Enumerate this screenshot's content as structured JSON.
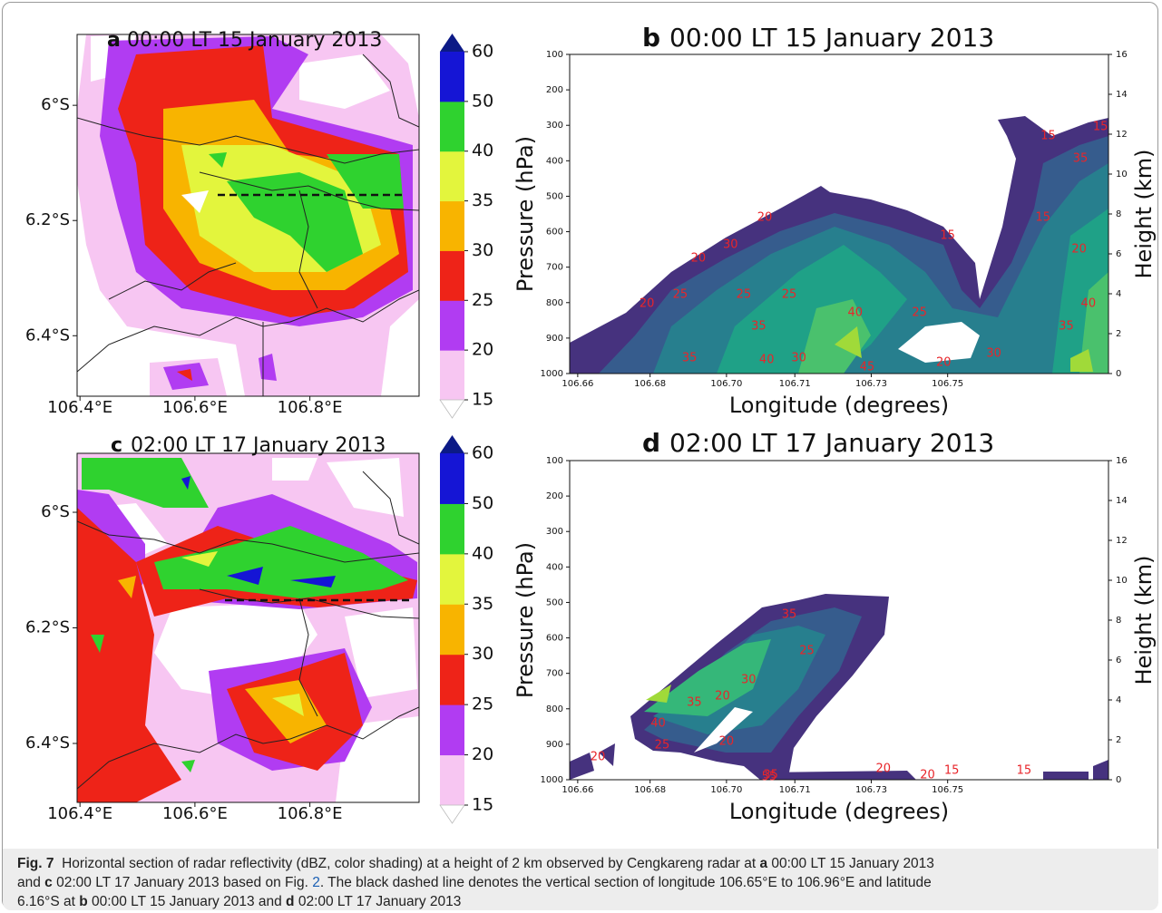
{
  "chart_data": [
    {
      "type": "map",
      "letter": "a",
      "title": "00:00 LT 15 January 2013",
      "xlim": [
        106.395,
        106.99
      ],
      "ylim": [
        -6.505,
        -5.877
      ],
      "xticks": [
        {
          "value": 106.4,
          "label": "106.4°E"
        },
        {
          "value": 106.6,
          "label": "106.6°E"
        },
        {
          "value": 106.8,
          "label": "106.8°E"
        }
      ],
      "yticks": [
        {
          "value": -6.0,
          "label": "6°S"
        },
        {
          "value": -6.2,
          "label": "6.2°S"
        },
        {
          "value": -6.4,
          "label": "6.4°S"
        }
      ],
      "colorbar": {
        "levels": [
          15,
          20,
          25,
          30,
          35,
          40,
          50,
          60
        ],
        "colors": [
          "#f7c6f2",
          "#b13cf2",
          "#ee2318",
          "#f8b400",
          "#e3f53d",
          "#2fd22f",
          "#1515d5"
        ],
        "extend_colors": [
          "#ffffff",
          "#0c1a86"
        ]
      }
    },
    {
      "type": "cross-section",
      "letter": "b",
      "title": "00:00 LT 15 January 2013",
      "xlabel": "Longitude (degrees)",
      "ylabel": "Pressure (hPa)",
      "y2label": "Height (km)",
      "xlim": [
        106.658,
        106.792
      ],
      "ylim": [
        1000,
        100
      ],
      "y2lim": [
        0,
        16
      ],
      "xticks": [
        106.66,
        {
          "value": 106.678,
          "label": "106.68"
        },
        {
          "value": 106.697,
          "label": "106.70"
        },
        {
          "value": 106.714,
          "label": "106.71"
        },
        {
          "value": 106.733,
          "label": "106.73"
        },
        {
          "value": 106.752,
          "label": "106.75"
        }
      ],
      "yticks": [
        100,
        200,
        300,
        400,
        500,
        600,
        700,
        800,
        900,
        1000
      ],
      "y2ticks": [
        0,
        2,
        4,
        6,
        8,
        10,
        12,
        14,
        16
      ],
      "label_color": "#e8252a",
      "contour_labels": [
        {
          "value": 20,
          "x": 106.7065,
          "y": 560
        },
        {
          "value": 20,
          "x": 106.69,
          "y": 675
        },
        {
          "value": 30,
          "x": 106.698,
          "y": 637
        },
        {
          "value": 25,
          "x": 106.6855,
          "y": 778
        },
        {
          "value": 25,
          "x": 106.7013,
          "y": 778
        },
        {
          "value": 25,
          "x": 106.7126,
          "y": 778
        },
        {
          "value": 20,
          "x": 106.6772,
          "y": 803
        },
        {
          "value": 40,
          "x": 106.729,
          "y": 829
        },
        {
          "value": 25,
          "x": 106.745,
          "y": 829
        },
        {
          "value": 35,
          "x": 106.705,
          "y": 867
        },
        {
          "value": 15,
          "x": 106.752,
          "y": 611
        },
        {
          "value": 15,
          "x": 106.777,
          "y": 330
        },
        {
          "value": 35,
          "x": 106.785,
          "y": 394
        },
        {
          "value": 20,
          "x": 106.7847,
          "y": 650
        },
        {
          "value": 40,
          "x": 106.787,
          "y": 803
        },
        {
          "value": 35,
          "x": 106.7815,
          "y": 867
        },
        {
          "value": 30,
          "x": 106.7635,
          "y": 944
        },
        {
          "value": 20,
          "x": 106.751,
          "y": 969
        },
        {
          "value": 35,
          "x": 106.6878,
          "y": 957
        },
        {
          "value": 40,
          "x": 106.707,
          "y": 962
        },
        {
          "value": 30,
          "x": 106.715,
          "y": 957
        },
        {
          "value": 45,
          "x": 106.732,
          "y": 982
        },
        {
          "value": 15,
          "x": 106.7757,
          "y": 560
        },
        {
          "value": 15,
          "x": 106.79,
          "y": 305
        }
      ]
    },
    {
      "type": "map",
      "letter": "c",
      "title": "02:00 LT 17 January 2013",
      "xlim": [
        106.395,
        106.99
      ],
      "ylim": [
        -6.502,
        -5.898
      ],
      "xticks": [
        {
          "value": 106.4,
          "label": "106.4°E"
        },
        {
          "value": 106.6,
          "label": "106.6°E"
        },
        {
          "value": 106.8,
          "label": "106.8°E"
        }
      ],
      "yticks": [
        {
          "value": -6.0,
          "label": "6°S"
        },
        {
          "value": -6.2,
          "label": "6.2°S"
        },
        {
          "value": -6.4,
          "label": "6.4°S"
        }
      ],
      "colorbar": {
        "levels": [
          15,
          20,
          25,
          30,
          35,
          40,
          50,
          60
        ],
        "colors": [
          "#f7c6f2",
          "#b13cf2",
          "#ee2318",
          "#f8b400",
          "#e3f53d",
          "#2fd22f",
          "#1515d5"
        ],
        "extend_colors": [
          "#ffffff",
          "#0c1a86"
        ]
      }
    },
    {
      "type": "cross-section",
      "letter": "d",
      "title": "02:00 LT 17 January 2013",
      "xlabel": "Longitude (degrees)",
      "ylabel": "Pressure (hPa)",
      "y2label": "Height (km)",
      "xlim": [
        106.658,
        106.792
      ],
      "ylim": [
        1000,
        100
      ],
      "y2lim": [
        0,
        16
      ],
      "xticks": [
        106.66,
        {
          "value": 106.678,
          "label": "106.68"
        },
        {
          "value": 106.697,
          "label": "106.70"
        },
        {
          "value": 106.714,
          "label": "106.71"
        },
        {
          "value": 106.733,
          "label": "106.73"
        },
        {
          "value": 106.752,
          "label": "106.75"
        }
      ],
      "yticks": [
        100,
        200,
        300,
        400,
        500,
        600,
        700,
        800,
        900,
        1000
      ],
      "y2ticks": [
        0,
        2,
        4,
        6,
        8,
        10,
        12,
        14,
        16
      ],
      "label_color": "#e8252a",
      "contour_labels": [
        {
          "value": 35,
          "x": 106.7126,
          "y": 535
        },
        {
          "value": 25,
          "x": 106.717,
          "y": 637
        },
        {
          "value": 30,
          "x": 106.7025,
          "y": 719
        },
        {
          "value": 20,
          "x": 106.696,
          "y": 765
        },
        {
          "value": 35,
          "x": 106.689,
          "y": 783
        },
        {
          "value": 40,
          "x": 106.68,
          "y": 841
        },
        {
          "value": 25,
          "x": 106.681,
          "y": 903
        },
        {
          "value": 20,
          "x": 106.697,
          "y": 893
        },
        {
          "value": 20,
          "x": 106.665,
          "y": 936
        },
        {
          "value": 35,
          "x": 106.708,
          "y": 987
        },
        {
          "value": 20,
          "x": 106.736,
          "y": 969
        },
        {
          "value": 20,
          "x": 106.747,
          "y": 987
        },
        {
          "value": 15,
          "x": 106.753,
          "y": 974
        },
        {
          "value": 15,
          "x": 106.771,
          "y": 974
        },
        {
          "value": 55,
          "x": 106.7076,
          "y": 992
        }
      ]
    }
  ],
  "caption": {
    "lines": [
      [
        {
          "text": "Fig. 7",
          "style": "bold"
        },
        {
          "text": "  Horizontal section of radar reflectivity (dBZ, color shading) at a height of 2 km observed by Cengkareng radar at "
        },
        {
          "text": "a",
          "style": "bold"
        },
        {
          "text": " 00:00 LT 15 January 2013"
        }
      ],
      [
        {
          "text": "and "
        },
        {
          "text": "c",
          "style": "bold"
        },
        {
          "text": " 02:00 LT 17 January 2013 based on Fig. "
        },
        {
          "text": "2",
          "style": "link"
        },
        {
          "text": ". The black dashed line denotes the vertical section of longitude 106.65°E to 106.96°E and latitude"
        }
      ],
      [
        {
          "text": "6.16°S at "
        },
        {
          "text": "b",
          "style": "bold"
        },
        {
          "text": " 00:00 LT 15 January 2013 and "
        },
        {
          "text": "d",
          "style": "bold"
        },
        {
          "text": " 02:00 LT 17 January 2013"
        }
      ]
    ]
  }
}
